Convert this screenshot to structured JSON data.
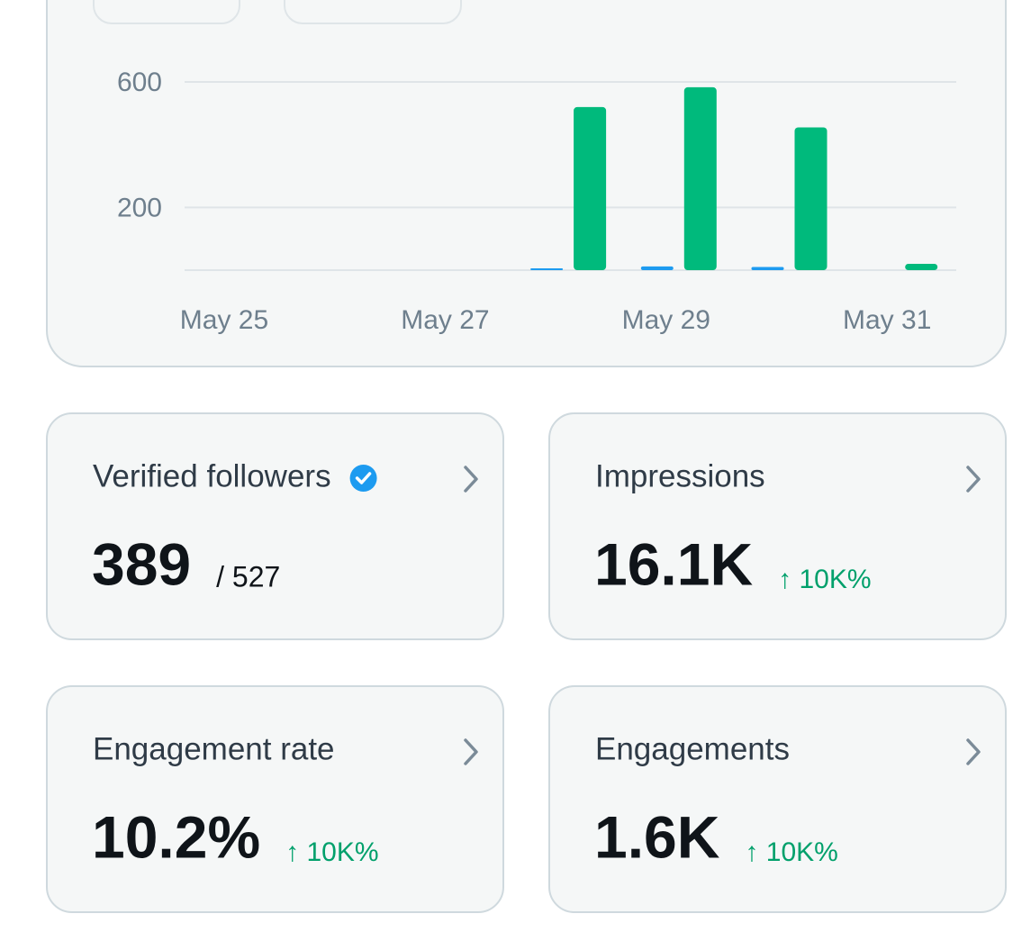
{
  "chart_data": {
    "type": "bar",
    "categories": [
      "May 25",
      null,
      "May 27",
      null,
      "May 29",
      null,
      "May 31"
    ],
    "series": [
      {
        "color": "#1d9bf0",
        "values": [
          0,
          0,
          0,
          3,
          12,
          10,
          0
        ]
      },
      {
        "color": "#00ba7c",
        "values": [
          0,
          0,
          0,
          520,
          583,
          455,
          20
        ]
      }
    ],
    "ylim": [
      0,
      600
    ],
    "yticks": [
      200,
      600
    ],
    "grid": true
  },
  "cards": [
    {
      "title": "Verified followers",
      "value": "389",
      "detail": "/ 527"
    },
    {
      "title": "Impressions",
      "value": "16.1K",
      "change": "↑ 10K%"
    },
    {
      "title": "Engagement rate",
      "value": "10.2%",
      "change": "↑ 10K%"
    },
    {
      "title": "Engagements",
      "value": "1.6K",
      "change": "↑ 10K%"
    }
  ]
}
